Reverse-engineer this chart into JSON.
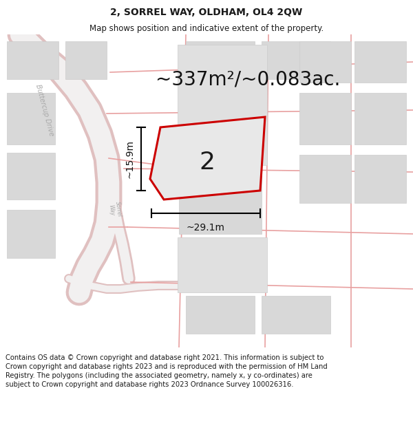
{
  "title": "2, SORREL WAY, OLDHAM, OL4 2QW",
  "subtitle": "Map shows position and indicative extent of the property.",
  "area_text": "~337m²/~0.083ac.",
  "label_number": "2",
  "width_label": "~29.1m",
  "height_label": "~15.9m",
  "footer_text": "Contains OS data © Crown copyright and database right 2021. This information is subject to Crown copyright and database rights 2023 and is reproduced with the permission of HM Land Registry. The polygons (including the associated geometry, namely x, y co-ordinates) are subject to Crown copyright and database rights 2023 Ordnance Survey 100026316.",
  "map_bg": "#efefef",
  "map_bg2": "#f5f5f5",
  "plot_fill": "#e8e8e8",
  "plot_edge_color": "#cc0000",
  "road_color": "#e8a0a0",
  "road_fill": "#f5f5f5",
  "building_color": "#d8d8d8",
  "building_edge": "#cccccc",
  "title_fontsize": 10,
  "subtitle_fontsize": 8.5,
  "area_fontsize": 20,
  "number_fontsize": 26,
  "dim_fontsize": 10,
  "footer_fontsize": 7.2,
  "road_label_color": "#aaaaaa",
  "header_bg": "#ffffff",
  "footer_bg": "#ffffff"
}
